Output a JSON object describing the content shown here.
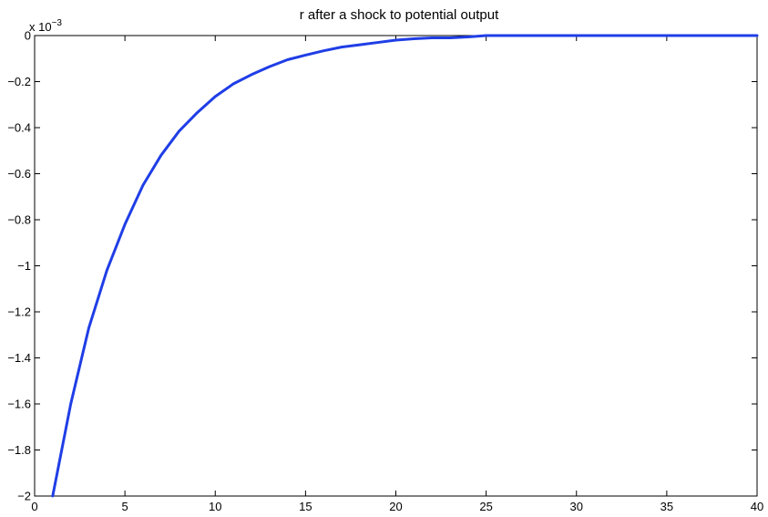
{
  "chart_data": {
    "type": "line",
    "title": "r after a shock to potential output",
    "xlabel": "",
    "ylabel": "",
    "y_exponent_label": "x 10",
    "y_exponent_power": "−3",
    "xlim": [
      0,
      40
    ],
    "ylim": [
      -2,
      0
    ],
    "y_scale_note": "values in units of 10^-3",
    "xticks": [
      0,
      5,
      10,
      15,
      20,
      25,
      30,
      35,
      40
    ],
    "xtick_labels": [
      "0",
      "5",
      "10",
      "15",
      "20",
      "25",
      "30",
      "35",
      "40"
    ],
    "yticks": [
      -2,
      -1.8,
      -1.6,
      -1.4,
      -1.2,
      -1,
      -0.8,
      -0.6,
      -0.4,
      -0.2,
      0
    ],
    "ytick_labels": [
      "−2",
      "−1.8",
      "−1.6",
      "−1.4",
      "−1.2",
      "−1",
      "−0.8",
      "−0.6",
      "−0.4",
      "−0.2",
      "0"
    ],
    "grid": false,
    "series": [
      {
        "color": "#1f3ee6",
        "x": [
          1,
          2,
          3,
          4,
          5,
          6,
          7,
          8,
          9,
          10,
          11,
          12,
          13,
          14,
          15,
          16,
          17,
          18,
          19,
          20,
          21,
          22,
          23,
          24,
          25,
          26,
          27,
          28,
          29,
          30,
          31,
          32,
          33,
          34,
          35,
          36,
          37,
          38,
          39,
          40
        ],
        "y": [
          -2.0,
          -1.6,
          -1.27,
          -1.02,
          -0.82,
          -0.65,
          -0.52,
          -0.415,
          -0.335,
          -0.265,
          -0.21,
          -0.17,
          -0.135,
          -0.105,
          -0.085,
          -0.066,
          -0.05,
          -0.04,
          -0.03,
          -0.02,
          -0.014,
          -0.01,
          -0.01,
          -0.006,
          0.0,
          0.0,
          0.0,
          0.0,
          0.0,
          0.0,
          0.0,
          0.0,
          0.0,
          0.0,
          0.0,
          0.0,
          0.0,
          0.0,
          0.0,
          0.0
        ]
      }
    ]
  }
}
